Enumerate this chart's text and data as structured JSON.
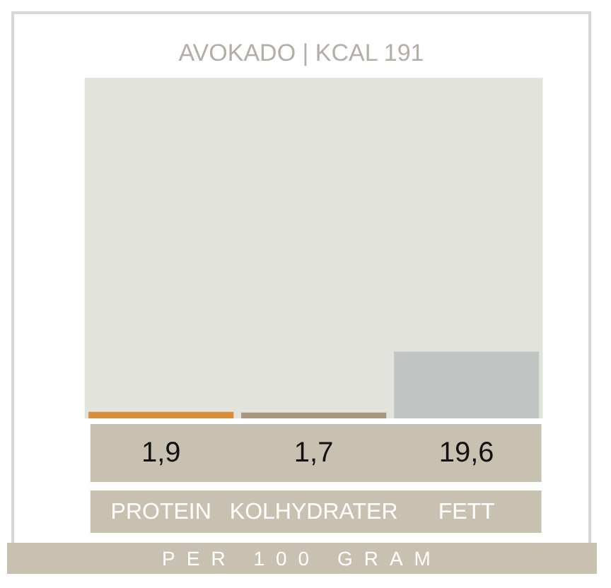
{
  "chart_data": {
    "type": "bar",
    "title": "AVOKADO | KCAL 191",
    "categories": [
      "PROTEIN",
      "KOLHYDRATER",
      "FETT"
    ],
    "values": [
      1.9,
      1.7,
      19.6
    ],
    "colors": [
      "#d68d3c",
      "#a8977e",
      "#c0c4c2"
    ],
    "value_labels": [
      "1,9",
      "1,7",
      "19,6"
    ],
    "ylim": [
      0,
      100
    ],
    "grid": false,
    "legend": false,
    "annotations": [
      "PER 100 GRAM"
    ]
  }
}
